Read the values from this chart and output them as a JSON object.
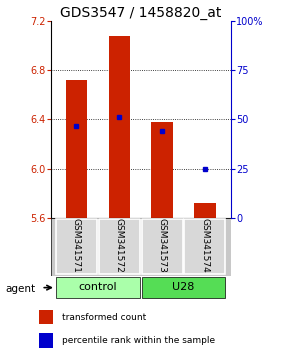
{
  "title": "GDS3547 / 1458820_at",
  "ylim": [
    5.6,
    7.2
  ],
  "yticks_left": [
    5.6,
    6.0,
    6.4,
    6.8,
    7.2
  ],
  "yticks_right_vals": [
    0,
    25,
    50,
    75,
    100
  ],
  "yticks_right_labels": [
    "0",
    "25",
    "50",
    "75",
    "100%"
  ],
  "samples": [
    "GSM341571",
    "GSM341572",
    "GSM341573",
    "GSM341574"
  ],
  "bar_tops": [
    6.72,
    7.08,
    6.38,
    5.72
  ],
  "bar_color": "#cc2200",
  "percentile_vals": [
    6.35,
    6.42,
    6.31,
    6.0
  ],
  "percentile_color": "#0000cc",
  "groups": [
    {
      "label": "control",
      "samples": [
        0,
        1
      ],
      "color": "#aaffaa"
    },
    {
      "label": "U28",
      "samples": [
        2,
        3
      ],
      "color": "#55dd55"
    }
  ],
  "agent_label": "agent",
  "ylabel_color": "#cc2200",
  "right_axis_color": "#0000cc",
  "title_fontsize": 10,
  "tick_fontsize": 7,
  "legend_fontsize": 6.5,
  "sample_label_fontsize": 6.5,
  "group_label_fontsize": 8,
  "bar_width": 0.5
}
